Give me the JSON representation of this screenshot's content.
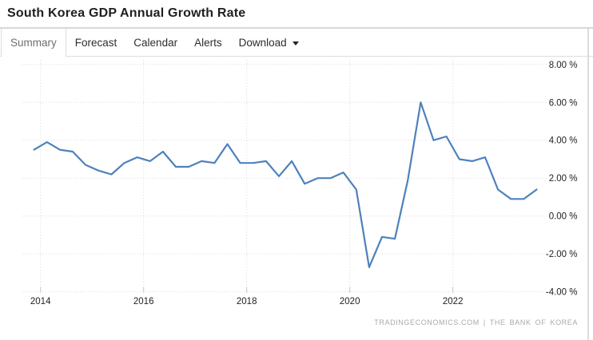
{
  "header": {
    "title": "South Korea GDP Annual Growth Rate"
  },
  "tabs": [
    {
      "label": "Summary",
      "active": true
    },
    {
      "label": "Forecast",
      "active": false
    },
    {
      "label": "Calendar",
      "active": false
    },
    {
      "label": "Alerts",
      "active": false
    },
    {
      "label": "Download",
      "active": false,
      "has_dropdown": true
    }
  ],
  "chart_data": {
    "type": "line",
    "title": "South Korea GDP Annual Growth Rate",
    "xlabel": "",
    "ylabel": "",
    "unit": "%",
    "ylim": [
      -4,
      8
    ],
    "grid": "dotted",
    "legend": "none",
    "line_color": "#4e81bc",
    "y_ticks": [
      {
        "label": "8.00 %",
        "value": 8
      },
      {
        "label": "6.00 %",
        "value": 6
      },
      {
        "label": "4.00 %",
        "value": 4
      },
      {
        "label": "2.00 %",
        "value": 2
      },
      {
        "label": "0.00 %",
        "value": 0
      },
      {
        "label": "-2.00 %",
        "value": -2
      },
      {
        "label": "-4.00 %",
        "value": -4
      }
    ],
    "x_ticks": [
      {
        "label": "2014",
        "year": 2014
      },
      {
        "label": "2016",
        "year": 2016
      },
      {
        "label": "2018",
        "year": 2018
      },
      {
        "label": "2020",
        "year": 2020
      },
      {
        "label": "2022",
        "year": 2022
      }
    ],
    "quarters": [
      "2013 Q4",
      "2014 Q1",
      "2014 Q2",
      "2014 Q3",
      "2014 Q4",
      "2015 Q1",
      "2015 Q2",
      "2015 Q3",
      "2015 Q4",
      "2016 Q1",
      "2016 Q2",
      "2016 Q3",
      "2016 Q4",
      "2017 Q1",
      "2017 Q2",
      "2017 Q3",
      "2017 Q4",
      "2018 Q1",
      "2018 Q2",
      "2018 Q3",
      "2018 Q4",
      "2019 Q1",
      "2019 Q2",
      "2019 Q3",
      "2019 Q4",
      "2020 Q1",
      "2020 Q2",
      "2020 Q3",
      "2020 Q4",
      "2021 Q1",
      "2021 Q2",
      "2021 Q3",
      "2021 Q4",
      "2022 Q1",
      "2022 Q2",
      "2022 Q3",
      "2022 Q4",
      "2023 Q1",
      "2023 Q2",
      "2023 Q3"
    ],
    "values": [
      3.5,
      3.9,
      3.5,
      3.4,
      2.7,
      2.4,
      2.2,
      2.8,
      3.1,
      2.9,
      3.4,
      2.6,
      2.6,
      2.9,
      2.8,
      3.8,
      2.8,
      2.8,
      2.9,
      2.1,
      2.9,
      1.7,
      2.0,
      2.0,
      2.3,
      1.4,
      -2.7,
      -1.1,
      -1.2,
      1.9,
      6.0,
      4.0,
      4.2,
      3.0,
      2.9,
      3.1,
      1.4,
      0.9,
      0.9,
      1.4
    ]
  },
  "footer": {
    "credit": "TRADINGECONOMICS.COM | THE BANK OF KOREA"
  }
}
